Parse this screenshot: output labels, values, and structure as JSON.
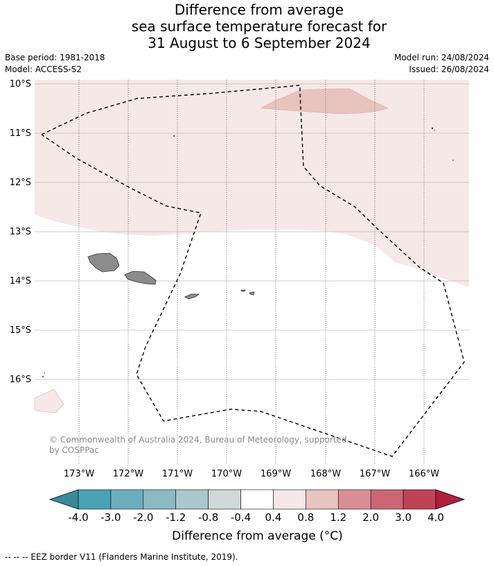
{
  "title": {
    "line1": "Difference from average",
    "line2": "sea surface temperature forecast for",
    "line3": "31 August to 6 September 2024"
  },
  "meta": {
    "base_period": "Base period: 1981-2018",
    "model": "Model: ACCESS-S2",
    "model_run": "Model run: 24/08/2024",
    "issued": "Issued: 26/08/2024"
  },
  "map": {
    "lat_labels": [
      "10°S",
      "11°S",
      "12°S",
      "13°S",
      "14°S",
      "15°S",
      "16°S"
    ],
    "lon_labels": [
      "173°W",
      "172°W",
      "171°W",
      "170°W",
      "169°W",
      "168°W",
      "167°W",
      "166°W"
    ],
    "copyright_line1": "© Commonwealth of Australia 2024, Bureau of Meteorology, supported",
    "copyright_line2": "by COSPPac",
    "colors": {
      "anomaly_0_4_to_0_8": "#f5e8e6",
      "anomaly_0_8_to_1_2": "#e8c3bf",
      "land": "#8c8c8c"
    }
  },
  "colorbar": {
    "title": "Difference from average (°C)",
    "ticks": [
      "-4.0",
      "-3.0",
      "-2.0",
      "-1.2",
      "-0.8",
      "-0.4",
      "0.4",
      "0.8",
      "1.2",
      "2.0",
      "3.0",
      "4.0"
    ],
    "colors": [
      "#3b8a99",
      "#4aa3b5",
      "#6caebe",
      "#8cb9c4",
      "#a9c7cc",
      "#d1d8d9",
      "#ffffff",
      "#f5e8e6",
      "#e8c3bf",
      "#d98e96",
      "#cc6674",
      "#c04355",
      "#b01f3c"
    ]
  },
  "footer": "--  --  -- EEZ border V11 (Flanders Marine Institute, 2019)."
}
